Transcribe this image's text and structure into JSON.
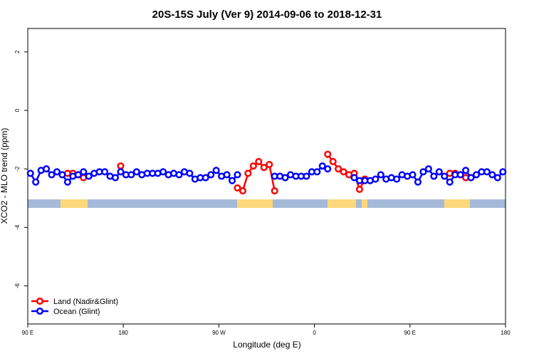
{
  "chart_data": {
    "type": "line",
    "title": "20S-15S July (Ver 9)   2014-09-06 to 2018-12-31",
    "x_label": "Longitude (deg E)",
    "y_label": "XCO2 - MLO trend (ppm)",
    "xlim": [
      90,
      540
    ],
    "ylim": [
      -7.3,
      2.8
    ],
    "xticks": [
      {
        "value": 90,
        "label": "90 E"
      },
      {
        "value": 180,
        "label": "180"
      },
      {
        "value": 270,
        "label": "90 W"
      },
      {
        "value": 360,
        "label": "0"
      },
      {
        "value": 450,
        "label": "90 E"
      },
      {
        "value": 540,
        "label": "180"
      }
    ],
    "yticks": [
      -6,
      -4,
      -2,
      0,
      2
    ],
    "legend": "bottom-left",
    "x": [
      92.5,
      97.5,
      102.5,
      107.5,
      112.5,
      117.5,
      122.5,
      127.5,
      132.5,
      137.5,
      142.5,
      147.5,
      152.5,
      157.5,
      162.5,
      167.5,
      172.5,
      177.5,
      182.5,
      187.5,
      192.5,
      197.5,
      202.5,
      207.5,
      212.5,
      217.5,
      222.5,
      227.5,
      232.5,
      237.5,
      242.5,
      247.5,
      252.5,
      257.5,
      262.5,
      267.5,
      272.5,
      277.5,
      282.5,
      287.5,
      292.5,
      297.5,
      302.5,
      307.5,
      312.5,
      317.5,
      322.5,
      327.5,
      332.5,
      337.5,
      342.5,
      347.5,
      352.5,
      357.5,
      362.5,
      367.5,
      372.5,
      377.5,
      382.5,
      387.5,
      392.5,
      397.5,
      402.5,
      407.5,
      412.5,
      417.5,
      422.5,
      427.5,
      432.5,
      437.5,
      442.5,
      447.5,
      452.5,
      457.5,
      462.5,
      467.5,
      472.5,
      477.5,
      482.5,
      487.5,
      492.5,
      497.5,
      502.5,
      507.5,
      512.5,
      517.5,
      522.5,
      527.5,
      532.5,
      537.5
    ],
    "series": [
      {
        "name": "Land (Nadir&Glint)",
        "color": "#ff0000",
        "values": [
          null,
          null,
          null,
          null,
          null,
          null,
          null,
          -2.15,
          -2.15,
          -2.2,
          -2.3,
          null,
          null,
          null,
          null,
          null,
          null,
          -1.9,
          null,
          null,
          null,
          null,
          null,
          null,
          null,
          null,
          null,
          null,
          null,
          null,
          null,
          null,
          null,
          null,
          null,
          null,
          null,
          null,
          null,
          -2.65,
          -2.75,
          -2.15,
          -1.9,
          -1.75,
          -1.95,
          -1.85,
          -2.75,
          null,
          null,
          null,
          null,
          null,
          null,
          null,
          null,
          null,
          -1.5,
          -1.75,
          -2.0,
          -2.1,
          -2.2,
          -2.15,
          -2.7,
          -2.35,
          null,
          null,
          null,
          null,
          null,
          null,
          null,
          null,
          null,
          null,
          null,
          null,
          null,
          null,
          null,
          -2.15,
          -2.15,
          -2.2,
          -2.3,
          null,
          null,
          null,
          null,
          null,
          null,
          null
        ]
      },
      {
        "name": "Ocean (Glint)",
        "color": "#0000ff",
        "values": [
          -2.15,
          -2.45,
          -2.05,
          -2.0,
          -2.2,
          -2.1,
          -2.2,
          -2.45,
          -2.25,
          -2.2,
          -2.1,
          -2.25,
          -2.15,
          -2.1,
          -2.1,
          -2.25,
          -2.3,
          -2.1,
          -2.2,
          -2.2,
          -2.1,
          -2.2,
          -2.15,
          -2.15,
          -2.15,
          -2.1,
          -2.2,
          -2.15,
          -2.2,
          -2.1,
          -2.15,
          -2.35,
          -2.3,
          -2.3,
          -2.2,
          -2.05,
          -2.25,
          -2.2,
          -2.4,
          -2.2,
          null,
          null,
          null,
          null,
          null,
          null,
          -2.25,
          -2.25,
          -2.3,
          -2.2,
          -2.25,
          -2.25,
          -2.25,
          -2.1,
          -2.1,
          -1.9,
          -2.0,
          null,
          null,
          null,
          null,
          -2.3,
          -2.4,
          -2.4,
          -2.4,
          -2.35,
          -2.2,
          -2.35,
          -2.3,
          -2.35,
          -2.2,
          -2.25,
          -2.2,
          -2.45,
          -2.1,
          -2.0,
          -2.25,
          -2.1,
          -2.25,
          -2.45,
          -2.2,
          -2.2,
          -2.05,
          -2.3,
          -2.2,
          -2.1,
          -2.1,
          -2.2,
          -2.3,
          -2.1
        ]
      }
    ]
  }
}
